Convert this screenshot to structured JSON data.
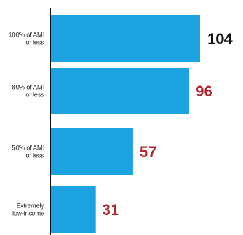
{
  "chart_data": {
    "type": "bar",
    "orientation": "horizontal",
    "categories": [
      [
        "100% of AMI",
        "or less"
      ],
      [
        "80% of AMI",
        "or less"
      ],
      [
        "50% of AMI",
        "or less"
      ],
      [
        "Extremely",
        "low-income"
      ]
    ],
    "values": [
      104,
      96,
      57,
      31
    ],
    "value_labels": [
      "104",
      "96",
      "57",
      "31"
    ],
    "xlim": [
      0,
      104
    ],
    "grid": false,
    "legend": "none",
    "title": "",
    "xlabel": "",
    "ylabel": "",
    "bar_color": "#1aa3e0",
    "value_label_colors": [
      "#111111",
      "#b0282f",
      "#b0282f",
      "#b0282f"
    ],
    "axis_color": "#111111"
  }
}
